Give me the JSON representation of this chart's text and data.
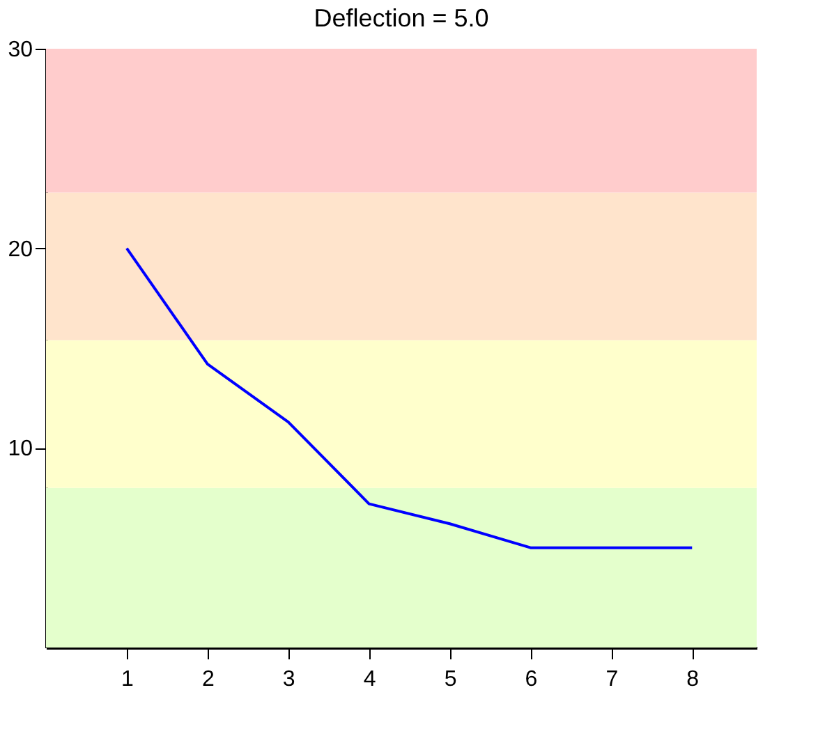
{
  "chart_data": {
    "type": "line",
    "title": "Deflection = 5.0",
    "x": [
      1,
      2,
      3,
      4,
      5,
      6,
      7,
      8
    ],
    "series": [
      {
        "color": "#0000ff",
        "values": [
          20,
          14.2,
          11.3,
          7.2,
          6.2,
          5.0,
          5.0,
          5.0
        ]
      }
    ],
    "xlim": [
      0,
      8.8
    ],
    "xticks": [
      1,
      2,
      3,
      4,
      5,
      6,
      7,
      8
    ],
    "ylim": [
      0,
      30
    ],
    "yticks": [
      10,
      20,
      30
    ],
    "bands": [
      {
        "axis": "y",
        "from": 0,
        "to": 8,
        "color": "#e4ffcc"
      },
      {
        "axis": "y",
        "from": 8,
        "to": 15.4,
        "color": "#ffffcc"
      },
      {
        "axis": "y",
        "from": 15.4,
        "to": 22.8,
        "color": "#ffe4cc"
      },
      {
        "axis": "y",
        "from": 22.8,
        "to": 30,
        "color": "#ffcccc"
      }
    ],
    "grid": false,
    "line_style": "solid",
    "marker": "none"
  }
}
